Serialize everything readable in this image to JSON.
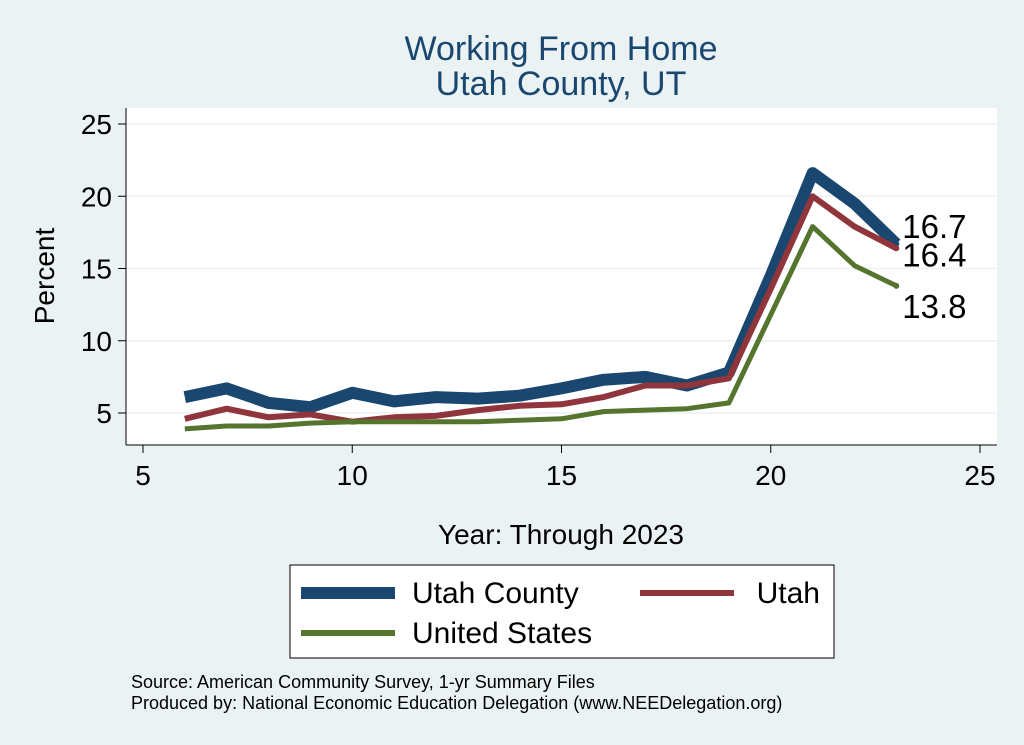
{
  "chart_data": {
    "type": "line",
    "title": [
      "Working From Home",
      "Utah County, UT"
    ],
    "xlabel": "Year: Through 2023",
    "ylabel": "Percent",
    "xlim": [
      5,
      25
    ],
    "ylim": [
      3.3,
      25.8
    ],
    "xticks": [
      5,
      10,
      15,
      20,
      25
    ],
    "yticks": [
      5,
      10,
      15,
      20,
      25
    ],
    "grid": true,
    "legend_position": "bottom",
    "series": [
      {
        "name": "Utah County",
        "color": "#1a476f",
        "x": [
          6,
          7,
          8,
          9,
          10,
          11,
          12,
          13,
          14,
          15,
          16,
          17,
          18,
          19,
          20,
          21,
          22,
          23
        ],
        "y": [
          6.1,
          6.7,
          5.7,
          5.4,
          6.4,
          5.8,
          6.1,
          6.0,
          6.2,
          6.7,
          7.3,
          7.5,
          6.9,
          7.8,
          14.5,
          21.6,
          19.5,
          16.7
        ],
        "end_label": "16.7"
      },
      {
        "name": "Utah",
        "color": "#90353b",
        "x": [
          6,
          7,
          8,
          9,
          10,
          11,
          12,
          13,
          14,
          15,
          16,
          17,
          18,
          19,
          20,
          21,
          22,
          23
        ],
        "y": [
          4.6,
          5.3,
          4.7,
          4.9,
          4.4,
          4.7,
          4.8,
          5.2,
          5.5,
          5.6,
          6.1,
          6.9,
          6.9,
          7.4,
          13.6,
          20.0,
          17.9,
          16.4
        ],
        "end_label": "16.4"
      },
      {
        "name": "United States",
        "color": "#55752f",
        "x": [
          6,
          7,
          8,
          9,
          10,
          11,
          12,
          13,
          14,
          15,
          16,
          17,
          18,
          19,
          20,
          21,
          22,
          23
        ],
        "y": [
          3.9,
          4.1,
          4.1,
          4.3,
          4.4,
          4.4,
          4.4,
          4.4,
          4.5,
          4.6,
          5.1,
          5.2,
          5.3,
          5.7,
          11.8,
          17.9,
          15.2,
          13.8
        ],
        "end_label": "13.8"
      }
    ],
    "notes": [
      "Source: American Community Survey, 1-yr Summary Files",
      "Produced by: National Economic Education Delegation (www.NEEDelegation.org)"
    ]
  }
}
